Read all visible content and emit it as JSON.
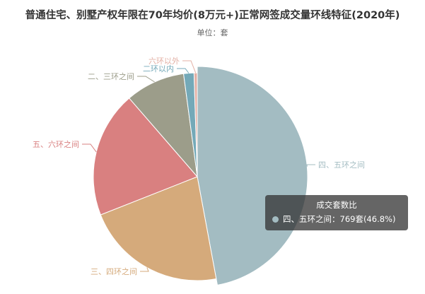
{
  "chart_data": {
    "type": "pie",
    "title": "普通住宅、别墅产权年限在70年均价(8万元+)正常网签成交量环线特征(2020年)",
    "subtitle": "单位：套",
    "unit": "套",
    "slices": [
      {
        "label": "四、五环之间",
        "value": 769,
        "percent": 46.8,
        "color": "#a3bcc2"
      },
      {
        "label": "三、四环之间",
        "color": "#d5aa7b"
      },
      {
        "label": "五、六环之间",
        "color": "#d98080"
      },
      {
        "label": "二、三环之间",
        "color": "#9c9d8a"
      },
      {
        "label": "二环以内",
        "color": "#74a9b8"
      },
      {
        "label": "六环以外",
        "color": "#e3b0a5"
      }
    ],
    "slice_percent_estimates": [
      46.8,
      21.8,
      19.5,
      9.2,
      1.6,
      0.5
    ],
    "highlighted_slice": 0
  },
  "tooltip": {
    "title": "成交套数比",
    "text": "四、五环之间：769套(46.8%)"
  }
}
